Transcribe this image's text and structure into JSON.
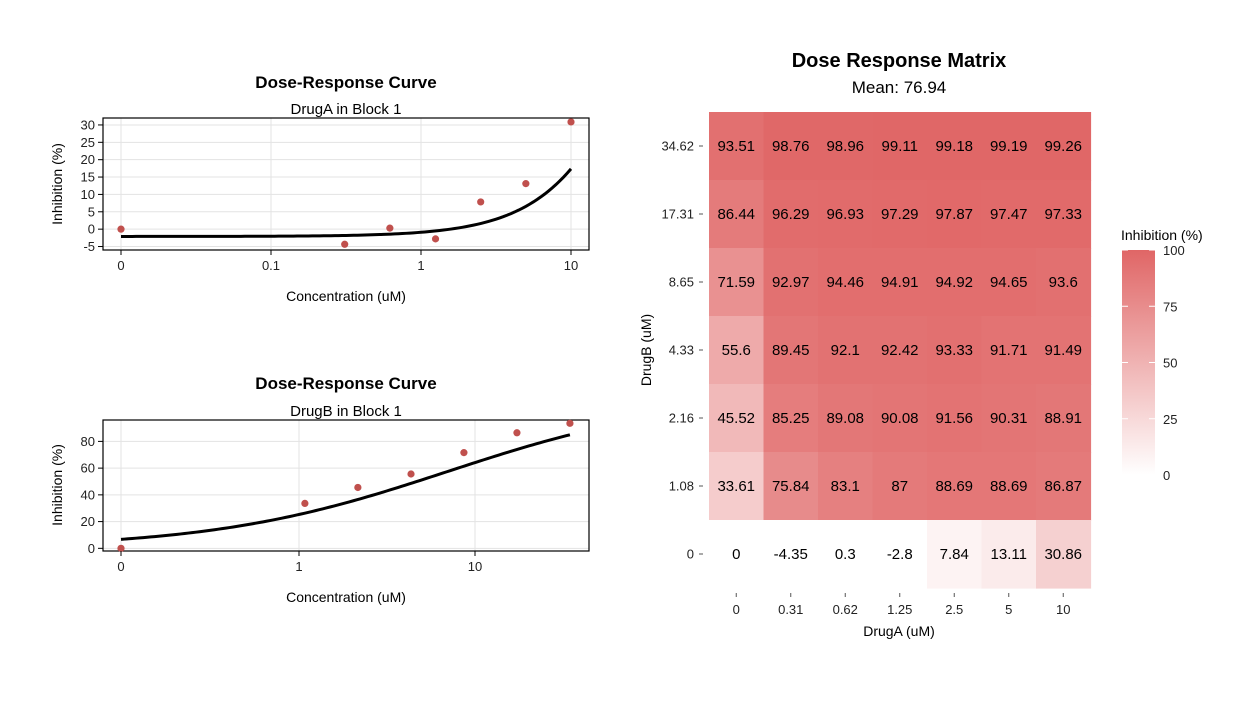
{
  "chart_data": [
    {
      "type": "scatter",
      "title": "Dose-Response Curve",
      "subtitle": "DrugA in Block 1",
      "xlabel": "Concentration (uM)",
      "ylabel": "Inhibition (%)",
      "x_scale": "log",
      "x_ticks": [
        {
          "value": 0,
          "label": "0"
        },
        {
          "value": 0.1,
          "label": "0.1"
        },
        {
          "value": 1,
          "label": "1"
        },
        {
          "value": 10,
          "label": "10"
        }
      ],
      "y_ticks": [
        -5,
        0,
        5,
        10,
        15,
        20,
        25,
        30
      ],
      "ylim": [
        -6,
        32
      ],
      "points": [
        {
          "x": 0,
          "y": 0
        },
        {
          "x": 0.31,
          "y": -4.35
        },
        {
          "x": 0.62,
          "y": 0.3
        },
        {
          "x": 1.25,
          "y": -2.8
        },
        {
          "x": 2.5,
          "y": 7.84
        },
        {
          "x": 5,
          "y": 13.11
        },
        {
          "x": 10,
          "y": 30.86
        }
      ],
      "fit": {
        "bottom": -2.1,
        "top": 200,
        "ic50": 60,
        "hill": 1.25
      }
    },
    {
      "type": "scatter",
      "title": "Dose-Response Curve",
      "subtitle": "DrugB in Block 1",
      "xlabel": "Concentration (uM)",
      "ylabel": "Inhibition (%)",
      "x_scale": "log",
      "x_ticks": [
        {
          "value": 0,
          "label": "0"
        },
        {
          "value": 1,
          "label": "1"
        },
        {
          "value": 10,
          "label": "10"
        }
      ],
      "y_ticks": [
        0,
        20,
        40,
        60,
        80
      ],
      "ylim": [
        -2,
        96
      ],
      "points": [
        {
          "x": 0,
          "y": 0
        },
        {
          "x": 1.08,
          "y": 33.61
        },
        {
          "x": 2.16,
          "y": 45.52
        },
        {
          "x": 4.33,
          "y": 55.6
        },
        {
          "x": 8.65,
          "y": 71.59
        },
        {
          "x": 17.31,
          "y": 86.44
        },
        {
          "x": 34.62,
          "y": 93.51
        }
      ],
      "fit": {
        "bottom": 0,
        "top": 115,
        "ic50": 7,
        "hill": 0.65
      }
    },
    {
      "type": "heatmap",
      "title": "Dose Response Matrix",
      "subtitle": "Mean: 76.94",
      "xlabel": "DrugA (uM)",
      "ylabel": "DrugB (uM)",
      "x_categories": [
        "0",
        "0.31",
        "0.62",
        "1.25",
        "2.5",
        "5",
        "10"
      ],
      "y_categories": [
        "34.62",
        "17.31",
        "8.65",
        "4.33",
        "2.16",
        "1.08",
        "0"
      ],
      "values": [
        [
          "93.51",
          "98.76",
          "98.96",
          "99.11",
          "99.18",
          "99.19",
          "99.26"
        ],
        [
          "86.44",
          "96.29",
          "96.93",
          "97.29",
          "97.87",
          "97.47",
          "97.33"
        ],
        [
          "71.59",
          "92.97",
          "94.46",
          "94.91",
          "94.92",
          "94.65",
          "93.6"
        ],
        [
          "55.6",
          "89.45",
          "92.1",
          "92.42",
          "93.33",
          "91.71",
          "91.49"
        ],
        [
          "45.52",
          "85.25",
          "89.08",
          "90.08",
          "91.56",
          "90.31",
          "88.91"
        ],
        [
          "33.61",
          "75.84",
          "83.1",
          "87",
          "88.69",
          "88.69",
          "86.87"
        ],
        [
          "0",
          "-4.35",
          "0.3",
          "-2.8",
          "7.84",
          "13.11",
          "30.86"
        ]
      ],
      "legend": {
        "title": "Inhibition (%)",
        "ticks": [
          "0",
          "25",
          "50",
          "75",
          "100"
        ],
        "range": [
          0,
          100
        ],
        "low_color": "#ffffff",
        "high_color": "#e06666"
      }
    }
  ],
  "colors": {
    "point": "#c0504d",
    "heat_high": "#e06666",
    "heat_low": "#ffffff"
  }
}
